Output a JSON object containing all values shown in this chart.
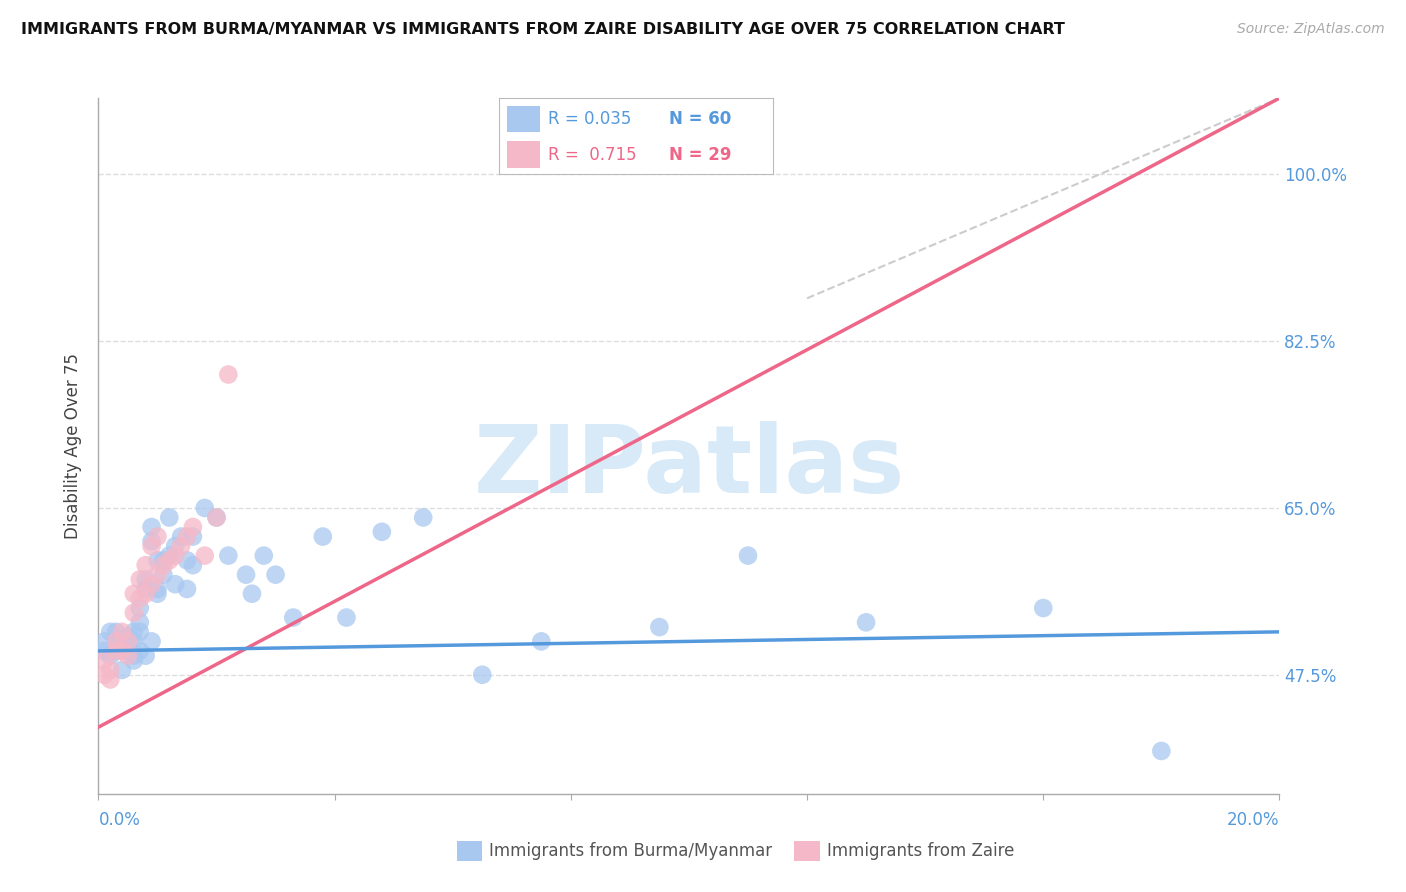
{
  "title": "IMMIGRANTS FROM BURMA/MYANMAR VS IMMIGRANTS FROM ZAIRE DISABILITY AGE OVER 75 CORRELATION CHART",
  "source": "Source: ZipAtlas.com",
  "ylabel": "Disability Age Over 75",
  "ytick_values": [
    0.475,
    0.65,
    0.825,
    1.0
  ],
  "xlim": [
    0.0,
    0.2
  ],
  "ylim": [
    0.35,
    1.08
  ],
  "blue_color": "#a8c8f0",
  "pink_color": "#f5b8c8",
  "blue_line_color": "#5599dd",
  "pink_line_color": "#ee6688",
  "dashed_line_color": "#cccccc",
  "watermark_color": "#d8eaf8",
  "watermark": "ZIPatlas",
  "blue_R": 0.035,
  "blue_N": 60,
  "pink_R": 0.715,
  "pink_N": 29,
  "blue_line_x": [
    0.0,
    0.2
  ],
  "blue_line_y": [
    0.5,
    0.52
  ],
  "pink_line_x": [
    0.0,
    0.2
  ],
  "pink_line_y": [
    0.42,
    1.08
  ],
  "dash_line_x": [
    0.12,
    0.2
  ],
  "dash_line_y": [
    0.87,
    1.08
  ],
  "blue_scatter_x": [
    0.001,
    0.001,
    0.002,
    0.002,
    0.003,
    0.003,
    0.003,
    0.004,
    0.004,
    0.004,
    0.005,
    0.005,
    0.005,
    0.006,
    0.006,
    0.006,
    0.006,
    0.007,
    0.007,
    0.007,
    0.007,
    0.008,
    0.008,
    0.008,
    0.009,
    0.009,
    0.009,
    0.01,
    0.01,
    0.01,
    0.011,
    0.011,
    0.012,
    0.012,
    0.013,
    0.013,
    0.014,
    0.015,
    0.015,
    0.016,
    0.016,
    0.018,
    0.02,
    0.022,
    0.025,
    0.026,
    0.028,
    0.03,
    0.033,
    0.038,
    0.042,
    0.048,
    0.055,
    0.065,
    0.075,
    0.095,
    0.11,
    0.13,
    0.16,
    0.18
  ],
  "blue_scatter_y": [
    0.5,
    0.51,
    0.495,
    0.52,
    0.51,
    0.5,
    0.52,
    0.48,
    0.51,
    0.5,
    0.505,
    0.515,
    0.5,
    0.51,
    0.495,
    0.52,
    0.49,
    0.53,
    0.5,
    0.52,
    0.545,
    0.565,
    0.575,
    0.495,
    0.615,
    0.63,
    0.51,
    0.565,
    0.595,
    0.56,
    0.58,
    0.595,
    0.6,
    0.64,
    0.57,
    0.61,
    0.62,
    0.565,
    0.595,
    0.59,
    0.62,
    0.65,
    0.64,
    0.6,
    0.58,
    0.56,
    0.6,
    0.58,
    0.535,
    0.62,
    0.535,
    0.625,
    0.64,
    0.475,
    0.51,
    0.525,
    0.6,
    0.53,
    0.545,
    0.395
  ],
  "pink_scatter_x": [
    0.001,
    0.001,
    0.002,
    0.002,
    0.003,
    0.003,
    0.004,
    0.004,
    0.005,
    0.005,
    0.006,
    0.006,
    0.007,
    0.007,
    0.008,
    0.008,
    0.009,
    0.009,
    0.01,
    0.01,
    0.011,
    0.012,
    0.013,
    0.014,
    0.015,
    0.016,
    0.018,
    0.02,
    0.022
  ],
  "pink_scatter_y": [
    0.475,
    0.49,
    0.47,
    0.48,
    0.5,
    0.51,
    0.5,
    0.52,
    0.495,
    0.51,
    0.54,
    0.56,
    0.555,
    0.575,
    0.59,
    0.56,
    0.61,
    0.57,
    0.62,
    0.58,
    0.59,
    0.595,
    0.6,
    0.61,
    0.62,
    0.63,
    0.6,
    0.64,
    0.79
  ]
}
